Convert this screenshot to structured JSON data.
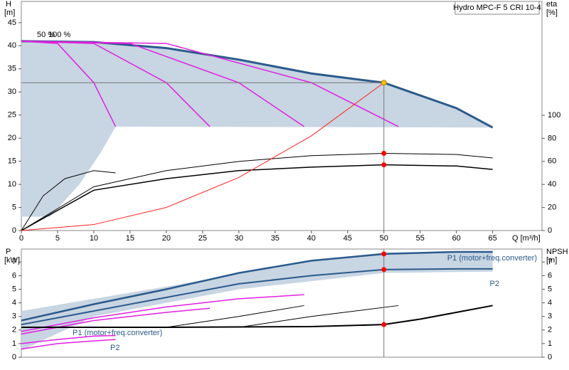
{
  "chart_data": [
    {
      "type": "line",
      "title": "Hydro MPC-F 5 CRI 10-4",
      "annotations": [
        "50 %",
        "100 %"
      ],
      "ylabel": "H",
      "yunit": "[m]",
      "y2label": "eta",
      "y2unit": "[%]",
      "xlabel": "Q [m³/h]",
      "xlim": [
        0,
        71.8
      ],
      "ylim": [
        0,
        49.6
      ],
      "y2lim": [
        0,
        198.8
      ],
      "xticks": [
        0,
        5,
        10,
        15,
        20,
        25,
        30,
        35,
        40,
        45,
        50,
        55,
        60,
        65
      ],
      "yticks": [
        0,
        5,
        10,
        15,
        20,
        25,
        30,
        35,
        40,
        45
      ],
      "y2ticks": [
        0,
        20,
        40,
        60,
        80,
        100
      ],
      "series": [
        {
          "kind": "area",
          "color": "#c8d5e2",
          "x": [
            0,
            10,
            20,
            30,
            40,
            50,
            60,
            65,
            13,
            11,
            8,
            4,
            0
          ],
          "values": [
            41,
            40.8,
            39.5,
            37,
            34,
            32,
            26.5,
            22.3,
            22.5,
            17,
            10,
            3,
            3
          ]
        },
        {
          "kind": "line",
          "color": "#2a5a8c",
          "width": 3,
          "x": [
            0,
            10,
            20,
            30,
            40,
            50,
            60,
            65
          ],
          "values": [
            41,
            40.8,
            39.5,
            37,
            34,
            32,
            26.5,
            22.3
          ]
        },
        {
          "kind": "line",
          "color": "#e020e0",
          "width": 1.5,
          "x": [
            0,
            5,
            10,
            13
          ],
          "values": [
            41,
            40.5,
            32,
            22.5
          ]
        },
        {
          "kind": "line",
          "color": "#e020e0",
          "width": 1.5,
          "x": [
            0,
            10,
            20,
            26
          ],
          "values": [
            41,
            40.5,
            32,
            22.5
          ]
        },
        {
          "kind": "line",
          "color": "#e020e0",
          "width": 1.5,
          "x": [
            0,
            15,
            30,
            39
          ],
          "values": [
            41,
            40.5,
            32,
            22.5
          ]
        },
        {
          "kind": "line",
          "color": "#e020e0",
          "width": 1.5,
          "x": [
            0,
            20,
            40,
            52
          ],
          "values": [
            41,
            40.5,
            32,
            22.5
          ]
        },
        {
          "kind": "line",
          "color": "#000000",
          "width": 1,
          "axis": "y2",
          "x": [
            0,
            10,
            20,
            30,
            40,
            50,
            60,
            65
          ],
          "values": [
            0,
            38,
            52,
            60,
            65,
            67,
            66,
            63
          ]
        },
        {
          "kind": "line",
          "color": "#000000",
          "width": 1.5,
          "axis": "y2",
          "x": [
            0,
            10,
            20,
            30,
            40,
            50,
            60,
            65
          ],
          "values": [
            0,
            35,
            45,
            52,
            55,
            57,
            56,
            53
          ]
        },
        {
          "kind": "line",
          "color": "#000000",
          "width": 1,
          "axis": "y2",
          "x": [
            0,
            3,
            6,
            10,
            13
          ],
          "values": [
            0,
            30,
            45,
            52,
            50
          ]
        },
        {
          "kind": "line",
          "color": "#ff2020",
          "width": 1,
          "x": [
            0,
            10,
            20,
            30,
            40,
            50
          ],
          "values": [
            0,
            1.3,
            5,
            11.5,
            20.5,
            32
          ]
        },
        {
          "kind": "line",
          "color": "#777777",
          "width": 1,
          "x": [
            0,
            50,
            50
          ],
          "values": [
            32,
            32,
            0
          ]
        },
        {
          "kind": "marker",
          "color": "#f5c400",
          "x": [
            50
          ],
          "values": [
            32
          ]
        },
        {
          "kind": "marker",
          "color": "#ff0000",
          "axis": "y2",
          "x": [
            50
          ],
          "values": [
            67
          ]
        },
        {
          "kind": "marker",
          "color": "#ff0000",
          "axis": "y2",
          "x": [
            50
          ],
          "values": [
            57
          ]
        }
      ]
    },
    {
      "type": "line",
      "ylabel": "P",
      "yunit": "[kW]",
      "y2label": "NPSH",
      "y2unit": "[m]",
      "xlim": [
        0,
        71.8
      ],
      "ylim": [
        0,
        7.96
      ],
      "y2lim": [
        0,
        7.96
      ],
      "yticks": [
        0,
        1,
        2,
        3,
        4,
        5,
        6,
        7
      ],
      "y2ticks": [
        0,
        1,
        2,
        3,
        4,
        5,
        6,
        7
      ],
      "series": [
        {
          "kind": "area",
          "color": "#c8d5e2",
          "x": [
            0,
            20,
            40,
            50,
            65,
            65,
            50,
            30,
            10,
            0
          ],
          "values": [
            3.4,
            5.2,
            7.1,
            7.7,
            7.8,
            6.3,
            6.2,
            5.0,
            3.0,
            0.5
          ]
        },
        {
          "kind": "line",
          "name": "P1 (motor+freq.converter)",
          "color": "#2a5a8c",
          "width": 2.5,
          "x": [
            0,
            10,
            20,
            30,
            40,
            50,
            60,
            65
          ],
          "values": [
            2.7,
            3.9,
            5.0,
            6.2,
            7.1,
            7.6,
            7.75,
            7.75
          ]
        },
        {
          "kind": "line",
          "name": "P2",
          "color": "#2a5a8c",
          "width": 2,
          "x": [
            0,
            10,
            20,
            30,
            40,
            50,
            60,
            65
          ],
          "values": [
            2.4,
            3.4,
            4.4,
            5.4,
            6.0,
            6.45,
            6.5,
            6.5
          ]
        },
        {
          "kind": "line",
          "color": "#e020e0",
          "width": 1.5,
          "x": [
            0,
            10,
            20,
            30,
            39
          ],
          "values": [
            1.9,
            2.9,
            3.7,
            4.3,
            4.6
          ]
        },
        {
          "kind": "line",
          "color": "#e020e0",
          "width": 1.5,
          "x": [
            0,
            10,
            20,
            26
          ],
          "values": [
            1.7,
            2.7,
            3.3,
            3.6
          ]
        },
        {
          "kind": "line",
          "name": "P1 (motor+freq.converter)",
          "color": "#e020e0",
          "width": 1.5,
          "x": [
            0,
            5,
            10,
            13
          ],
          "values": [
            1.0,
            1.3,
            1.55,
            1.6
          ]
        },
        {
          "kind": "line",
          "name": "P2",
          "color": "#e020e0",
          "width": 1.5,
          "x": [
            0,
            5,
            10,
            13
          ],
          "values": [
            0.6,
            1.0,
            1.2,
            1.3
          ]
        },
        {
          "kind": "line",
          "color": "#000000",
          "width": 2,
          "axis": "y2",
          "x": [
            0,
            20,
            40,
            50,
            55,
            60,
            65
          ],
          "values": [
            2.2,
            2.2,
            2.25,
            2.4,
            2.8,
            3.3,
            3.8
          ]
        },
        {
          "kind": "line",
          "color": "#000000",
          "width": 1,
          "axis": "y2",
          "x": [
            20,
            30,
            39
          ],
          "values": [
            2.2,
            3.0,
            3.8
          ]
        },
        {
          "kind": "line",
          "color": "#000000",
          "width": 1,
          "axis": "y2",
          "x": [
            30,
            40,
            52
          ],
          "values": [
            2.2,
            3.0,
            3.8
          ]
        },
        {
          "kind": "line",
          "color": "#777777",
          "width": 1,
          "x": [
            50,
            50
          ],
          "values": [
            0,
            7.96
          ]
        },
        {
          "kind": "marker",
          "color": "#ff0000",
          "x": [
            50
          ],
          "values": [
            7.6
          ]
        },
        {
          "kind": "marker",
          "color": "#ff0000",
          "x": [
            50
          ],
          "values": [
            6.45
          ]
        },
        {
          "kind": "marker",
          "color": "#ff0000",
          "axis": "y2",
          "x": [
            50
          ],
          "values": [
            2.4
          ]
        }
      ]
    }
  ]
}
